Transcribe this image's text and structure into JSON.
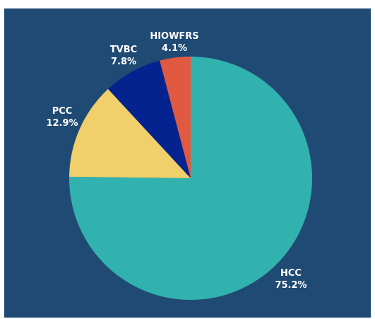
{
  "chart_data": {
    "type": "pie",
    "title": "",
    "start_angle_deg": 0,
    "direction": "clockwise",
    "slices": [
      {
        "name": "HCC",
        "value": 75.2,
        "label": "75.2%",
        "color": "#32b2af"
      },
      {
        "name": "PCC",
        "value": 12.9,
        "label": "12.9%",
        "color": "#f1cf6b"
      },
      {
        "name": "TVBC",
        "value": 7.8,
        "label": "7.8%",
        "color": "#05238f"
      },
      {
        "name": "HIOWFRS",
        "value": 4.1,
        "label": "4.1%",
        "color": "#e05a41"
      }
    ],
    "colors": {
      "background": "#1f4a74",
      "label_text": "#ffffff"
    }
  }
}
